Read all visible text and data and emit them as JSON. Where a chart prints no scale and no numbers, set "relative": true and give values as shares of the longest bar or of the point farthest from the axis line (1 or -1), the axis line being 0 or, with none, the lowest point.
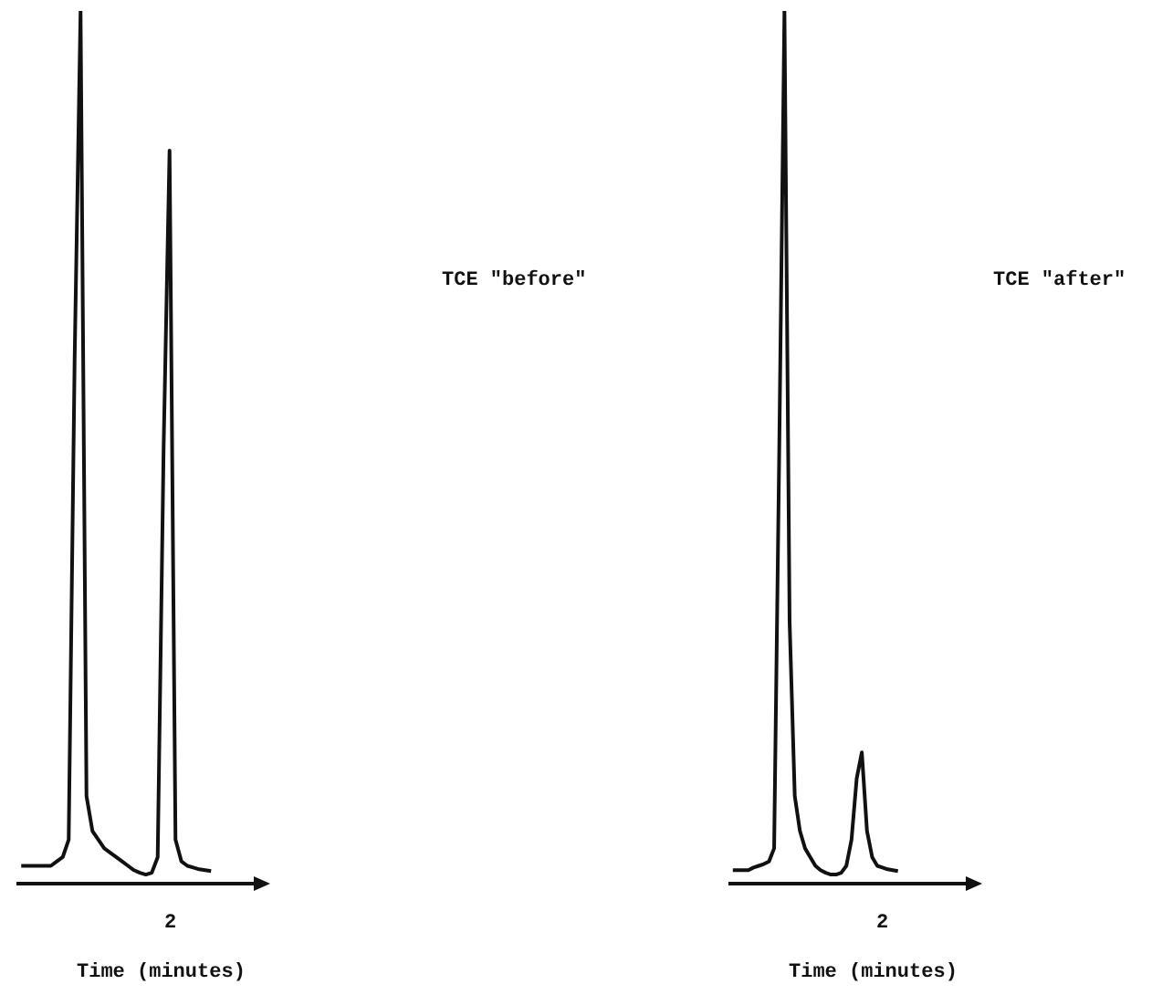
{
  "chart_data": [
    {
      "type": "line",
      "xlabel": "Time (minutes)",
      "annotations": [
        "2"
      ],
      "relative": true,
      "marker": "none",
      "line_style": "solid",
      "grid": false,
      "legend": false,
      "categories": [
        null,
        null,
        null,
        null,
        null,
        null,
        null,
        null,
        null,
        null,
        null,
        null,
        null,
        null,
        null,
        null,
        null,
        null,
        null,
        null,
        null,
        null,
        null,
        null,
        null,
        null,
        null,
        null,
        null,
        null,
        null,
        null,
        null,
        null,
        null,
        null,
        null,
        null,
        null,
        null
      ],
      "series": [
        {
          "name": "TCE \"before\"",
          "color": "#111111",
          "values": [
            0.02,
            0.02,
            0.02,
            0.02,
            0.02,
            0.02,
            0.025,
            0.03,
            0.05,
            0.6,
            1.0,
            0.1,
            0.06,
            0.05,
            0.04,
            0.035,
            0.03,
            0.025,
            0.02,
            0.015,
            0.012,
            0.01,
            0.012,
            0.03,
            0.5,
            0.84,
            0.05,
            0.025,
            0.02,
            0.018,
            0.016,
            0.015,
            0.014,
            null,
            null,
            null,
            null,
            null,
            null,
            null
          ]
        }
      ]
    },
    {
      "type": "line",
      "xlabel": "Time (minutes)",
      "annotations": [
        "2"
      ],
      "relative": true,
      "marker": "none",
      "line_style": "solid",
      "grid": false,
      "legend": false,
      "categories": [
        null,
        null,
        null,
        null,
        null,
        null,
        null,
        null,
        null,
        null,
        null,
        null,
        null,
        null,
        null,
        null,
        null,
        null,
        null,
        null,
        null,
        null,
        null,
        null,
        null,
        null,
        null,
        null,
        null,
        null,
        null,
        null,
        null,
        null,
        null,
        null,
        null,
        null,
        null,
        null,
        null,
        null,
        null,
        null,
        null,
        null
      ],
      "series": [
        {
          "name": "TCE \"after\"",
          "color": "#111111",
          "values": [
            0.015,
            0.015,
            0.015,
            0.015,
            0.018,
            0.02,
            0.022,
            0.025,
            0.04,
            0.5,
            1.0,
            0.3,
            0.1,
            0.06,
            0.04,
            0.03,
            0.02,
            0.015,
            0.012,
            0.01,
            0.01,
            0.012,
            0.02,
            0.05,
            0.12,
            0.15,
            0.06,
            0.03,
            0.02,
            0.018,
            0.016,
            0.015,
            0.014,
            null,
            null,
            null,
            null,
            null,
            null,
            null,
            null,
            null,
            null,
            null,
            null,
            null
          ]
        }
      ]
    }
  ]
}
